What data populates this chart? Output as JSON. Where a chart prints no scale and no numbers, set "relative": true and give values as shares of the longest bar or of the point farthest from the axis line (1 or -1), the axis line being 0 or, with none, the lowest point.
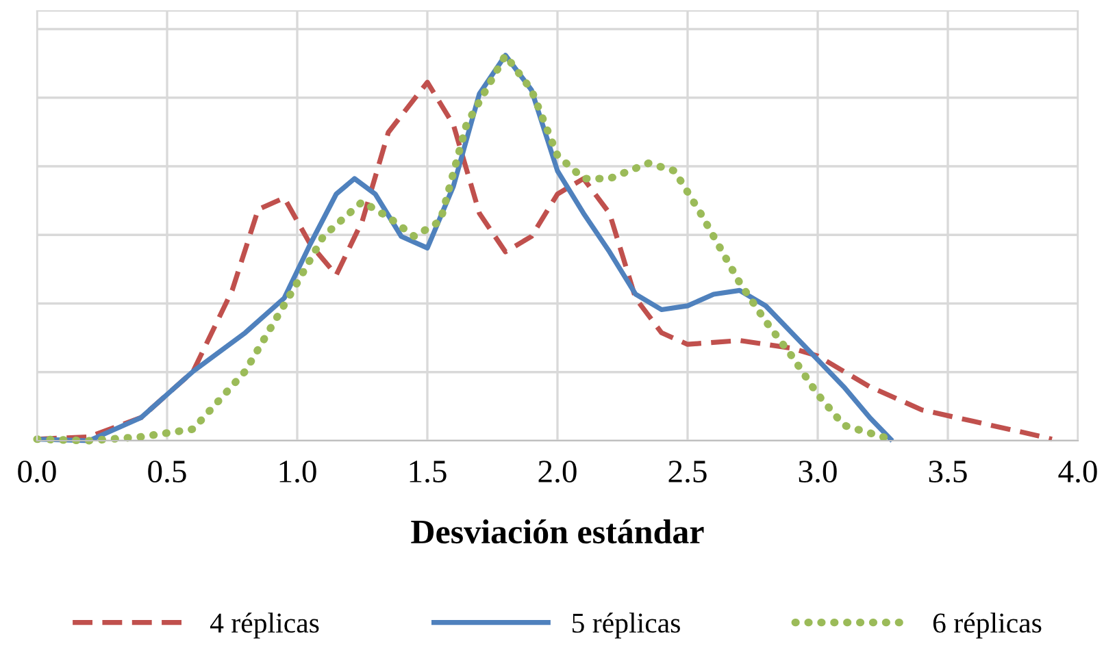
{
  "chart_data": {
    "type": "line",
    "xlabel": "Desviación estándar",
    "relative": true,
    "xlim": [
      0,
      4
    ],
    "xticks": [
      {
        "value": 0,
        "label": "0.0"
      },
      {
        "value": 0.5,
        "label": "0.5"
      },
      {
        "value": 1,
        "label": "1.0"
      },
      {
        "value": 1.5,
        "label": "1.5"
      },
      {
        "value": 2,
        "label": "2.0"
      },
      {
        "value": 2.5,
        "label": "2.5"
      },
      {
        "value": 3,
        "label": "3.0"
      },
      {
        "value": 3.5,
        "label": "3.5"
      },
      {
        "value": 4,
        "label": "4.0"
      }
    ],
    "grid": true,
    "legend": "bottom",
    "tick_labels": "x",
    "marker": "none",
    "series": [
      {
        "name": "4 réplicas",
        "color": "#c0504d",
        "line_style": "dashed",
        "x": [
          0,
          0.2,
          0.4,
          0.6,
          0.75,
          0.85,
          0.95,
          1.05,
          1.15,
          1.25,
          1.35,
          1.5,
          1.6,
          1.7,
          1.8,
          1.9,
          2.0,
          2.1,
          2.2,
          2.3,
          2.4,
          2.5,
          2.7,
          2.9,
          3.0,
          3.2,
          3.4,
          3.6,
          3.8,
          3.9
        ],
        "values": [
          0.004,
          0.01,
          0.06,
          0.18,
          0.39,
          0.6,
          0.63,
          0.51,
          0.43,
          0.57,
          0.8,
          0.93,
          0.82,
          0.59,
          0.49,
          0.53,
          0.64,
          0.68,
          0.59,
          0.37,
          0.28,
          0.25,
          0.26,
          0.24,
          0.22,
          0.14,
          0.08,
          0.05,
          0.02,
          0.004
        ]
      },
      {
        "name": "5 réplicas",
        "color": "#4f81bd",
        "line_style": "solid",
        "x": [
          0,
          0.2,
          0.4,
          0.6,
          0.8,
          0.95,
          1.05,
          1.15,
          1.22,
          1.3,
          1.4,
          1.5,
          1.6,
          1.7,
          1.8,
          1.9,
          2.0,
          2.1,
          2.2,
          2.3,
          2.4,
          2.5,
          2.6,
          2.7,
          2.8,
          2.9,
          3.0,
          3.1,
          3.2,
          3.28
        ],
        "values": [
          0.004,
          0,
          0.06,
          0.18,
          0.28,
          0.37,
          0.51,
          0.64,
          0.68,
          0.64,
          0.53,
          0.5,
          0.66,
          0.9,
          1.0,
          0.91,
          0.7,
          0.59,
          0.49,
          0.38,
          0.34,
          0.35,
          0.38,
          0.39,
          0.35,
          0.28,
          0.21,
          0.14,
          0.06,
          0.004
        ]
      },
      {
        "name": "6 réplicas",
        "color": "#9bbb59",
        "line_style": "dotted",
        "x": [
          0,
          0.2,
          0.4,
          0.6,
          0.8,
          1.0,
          1.1,
          1.25,
          1.35,
          1.45,
          1.55,
          1.65,
          1.8,
          1.9,
          2.0,
          2.1,
          2.2,
          2.35,
          2.45,
          2.55,
          2.7,
          2.8,
          2.9,
          3.0,
          3.1,
          3.28
        ],
        "values": [
          0.004,
          0,
          0.01,
          0.03,
          0.18,
          0.41,
          0.53,
          0.62,
          0.58,
          0.53,
          0.57,
          0.82,
          1.0,
          0.91,
          0.74,
          0.68,
          0.68,
          0.72,
          0.7,
          0.59,
          0.41,
          0.31,
          0.22,
          0.12,
          0.04,
          0.004
        ]
      }
    ]
  }
}
